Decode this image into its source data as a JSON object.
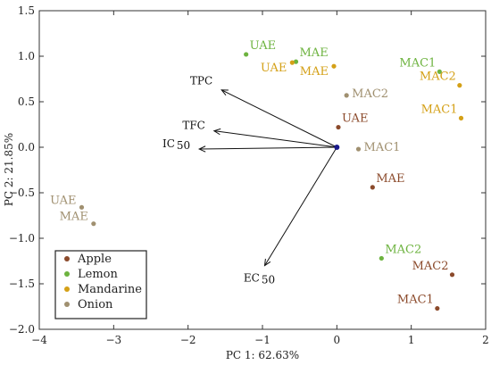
{
  "chart_data": {
    "type": "scatter",
    "subtype": "pca-biplot",
    "title": "",
    "xlabel": "PC 1: 62.63%",
    "ylabel": "PC 2: 21.85%",
    "xlim": [
      -4,
      2
    ],
    "ylim": [
      -2,
      1.5
    ],
    "xticks": [
      -4,
      -3,
      -2,
      -1,
      0,
      1,
      2
    ],
    "yticks": [
      -2,
      -1.5,
      -1,
      -0.5,
      0,
      0.5,
      1,
      1.5
    ],
    "xtick_labels": [
      "−4",
      "−3",
      "−2",
      "−1",
      "0",
      "1",
      "2"
    ],
    "ytick_labels": [
      "−2.0",
      "−1.5",
      "−1.0",
      "−0.5",
      "0.0",
      "0.5",
      "1.0",
      "1.5"
    ],
    "grid": false,
    "legend_position": "bottom-left",
    "series": [
      {
        "name": "Apple",
        "color": "#8B4A2B",
        "points": [
          {
            "x": 0.02,
            "y": 0.22,
            "label": "UAE"
          },
          {
            "x": 0.48,
            "y": -0.44,
            "label": "MAE"
          },
          {
            "x": 1.55,
            "y": -1.4,
            "label": "MAC2"
          },
          {
            "x": 1.35,
            "y": -1.77,
            "label": "MAC1"
          }
        ]
      },
      {
        "name": "Lemon",
        "color": "#6DB33F",
        "points": [
          {
            "x": -1.22,
            "y": 1.02,
            "label": "UAE"
          },
          {
            "x": -0.55,
            "y": 0.94,
            "label": "MAE"
          },
          {
            "x": 1.38,
            "y": 0.83,
            "label": "MAC1"
          },
          {
            "x": 0.6,
            "y": -1.22,
            "label": "MAC2"
          }
        ]
      },
      {
        "name": "Mandarine",
        "color": "#D4A017",
        "points": [
          {
            "x": -0.6,
            "y": 0.93,
            "label": "UAE"
          },
          {
            "x": -0.04,
            "y": 0.89,
            "label": "MAE"
          },
          {
            "x": 1.65,
            "y": 0.68,
            "label": "MAC2"
          },
          {
            "x": 1.67,
            "y": 0.32,
            "label": "MAC1"
          }
        ]
      },
      {
        "name": "Onion",
        "color": "#A09070",
        "points": [
          {
            "x": 0.13,
            "y": 0.57,
            "label": "MAC2"
          },
          {
            "x": 0.29,
            "y": -0.02,
            "label": "MAC1"
          },
          {
            "x": -3.43,
            "y": -0.66,
            "label": "UAE"
          },
          {
            "x": -3.27,
            "y": -0.84,
            "label": "MAE"
          }
        ]
      }
    ],
    "loadings": [
      {
        "label": "TPC",
        "x": -1.55,
        "y": 0.63
      },
      {
        "label": "TFC",
        "x": -1.65,
        "y": 0.18
      },
      {
        "label": "IC",
        "subscript": "50",
        "x": -1.85,
        "y": -0.02
      },
      {
        "label": "EC",
        "subscript": "50",
        "x": -0.97,
        "y": -1.3
      }
    ],
    "origin_color": "#1a1a8c"
  }
}
